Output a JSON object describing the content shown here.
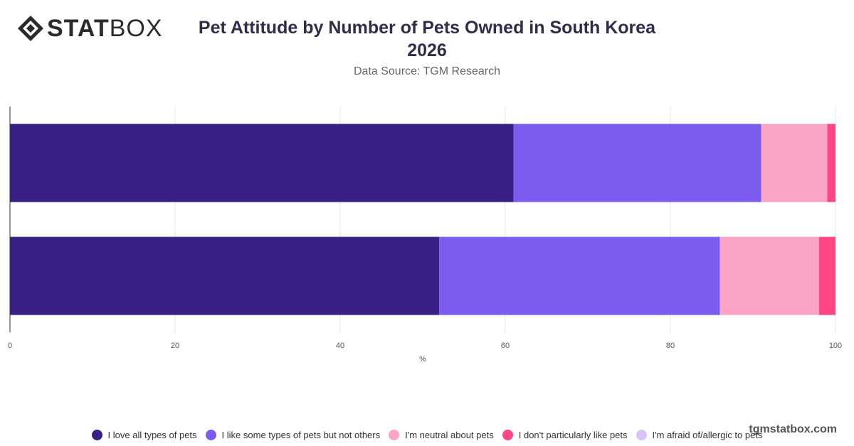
{
  "header": {
    "logo_bold": "STAT",
    "logo_light": "BOX",
    "title_line1": "Pet Attitude by Number of Pets Owned in South Korea",
    "title_line2": "2026",
    "subtitle": "Data Source: TGM Research"
  },
  "watermark": "tgmstatbox.com",
  "chart_data": {
    "type": "bar",
    "orientation": "horizontal",
    "stacked": true,
    "categories": [
      "",
      ""
    ],
    "xlabel": "%",
    "xlim": [
      0,
      100
    ],
    "xticks": [
      0,
      20,
      40,
      60,
      80,
      100
    ],
    "grid": true,
    "legend_position": "bottom",
    "series": [
      {
        "name": "I love all types of pets",
        "color": "#3a1f87",
        "values": [
          61,
          52
        ]
      },
      {
        "name": "I like some types of pets but not others",
        "color": "#7c5cee",
        "values": [
          30,
          34
        ]
      },
      {
        "name": "I'm neutral about pets",
        "color": "#fba4c6",
        "values": [
          8,
          12
        ]
      },
      {
        "name": "I don't particularly like pets",
        "color": "#ff4586",
        "values": [
          1,
          2
        ]
      },
      {
        "name": "I'm afraid of/allergic to pets",
        "color": "#d9c2f7",
        "values": [
          0,
          0
        ]
      }
    ]
  }
}
